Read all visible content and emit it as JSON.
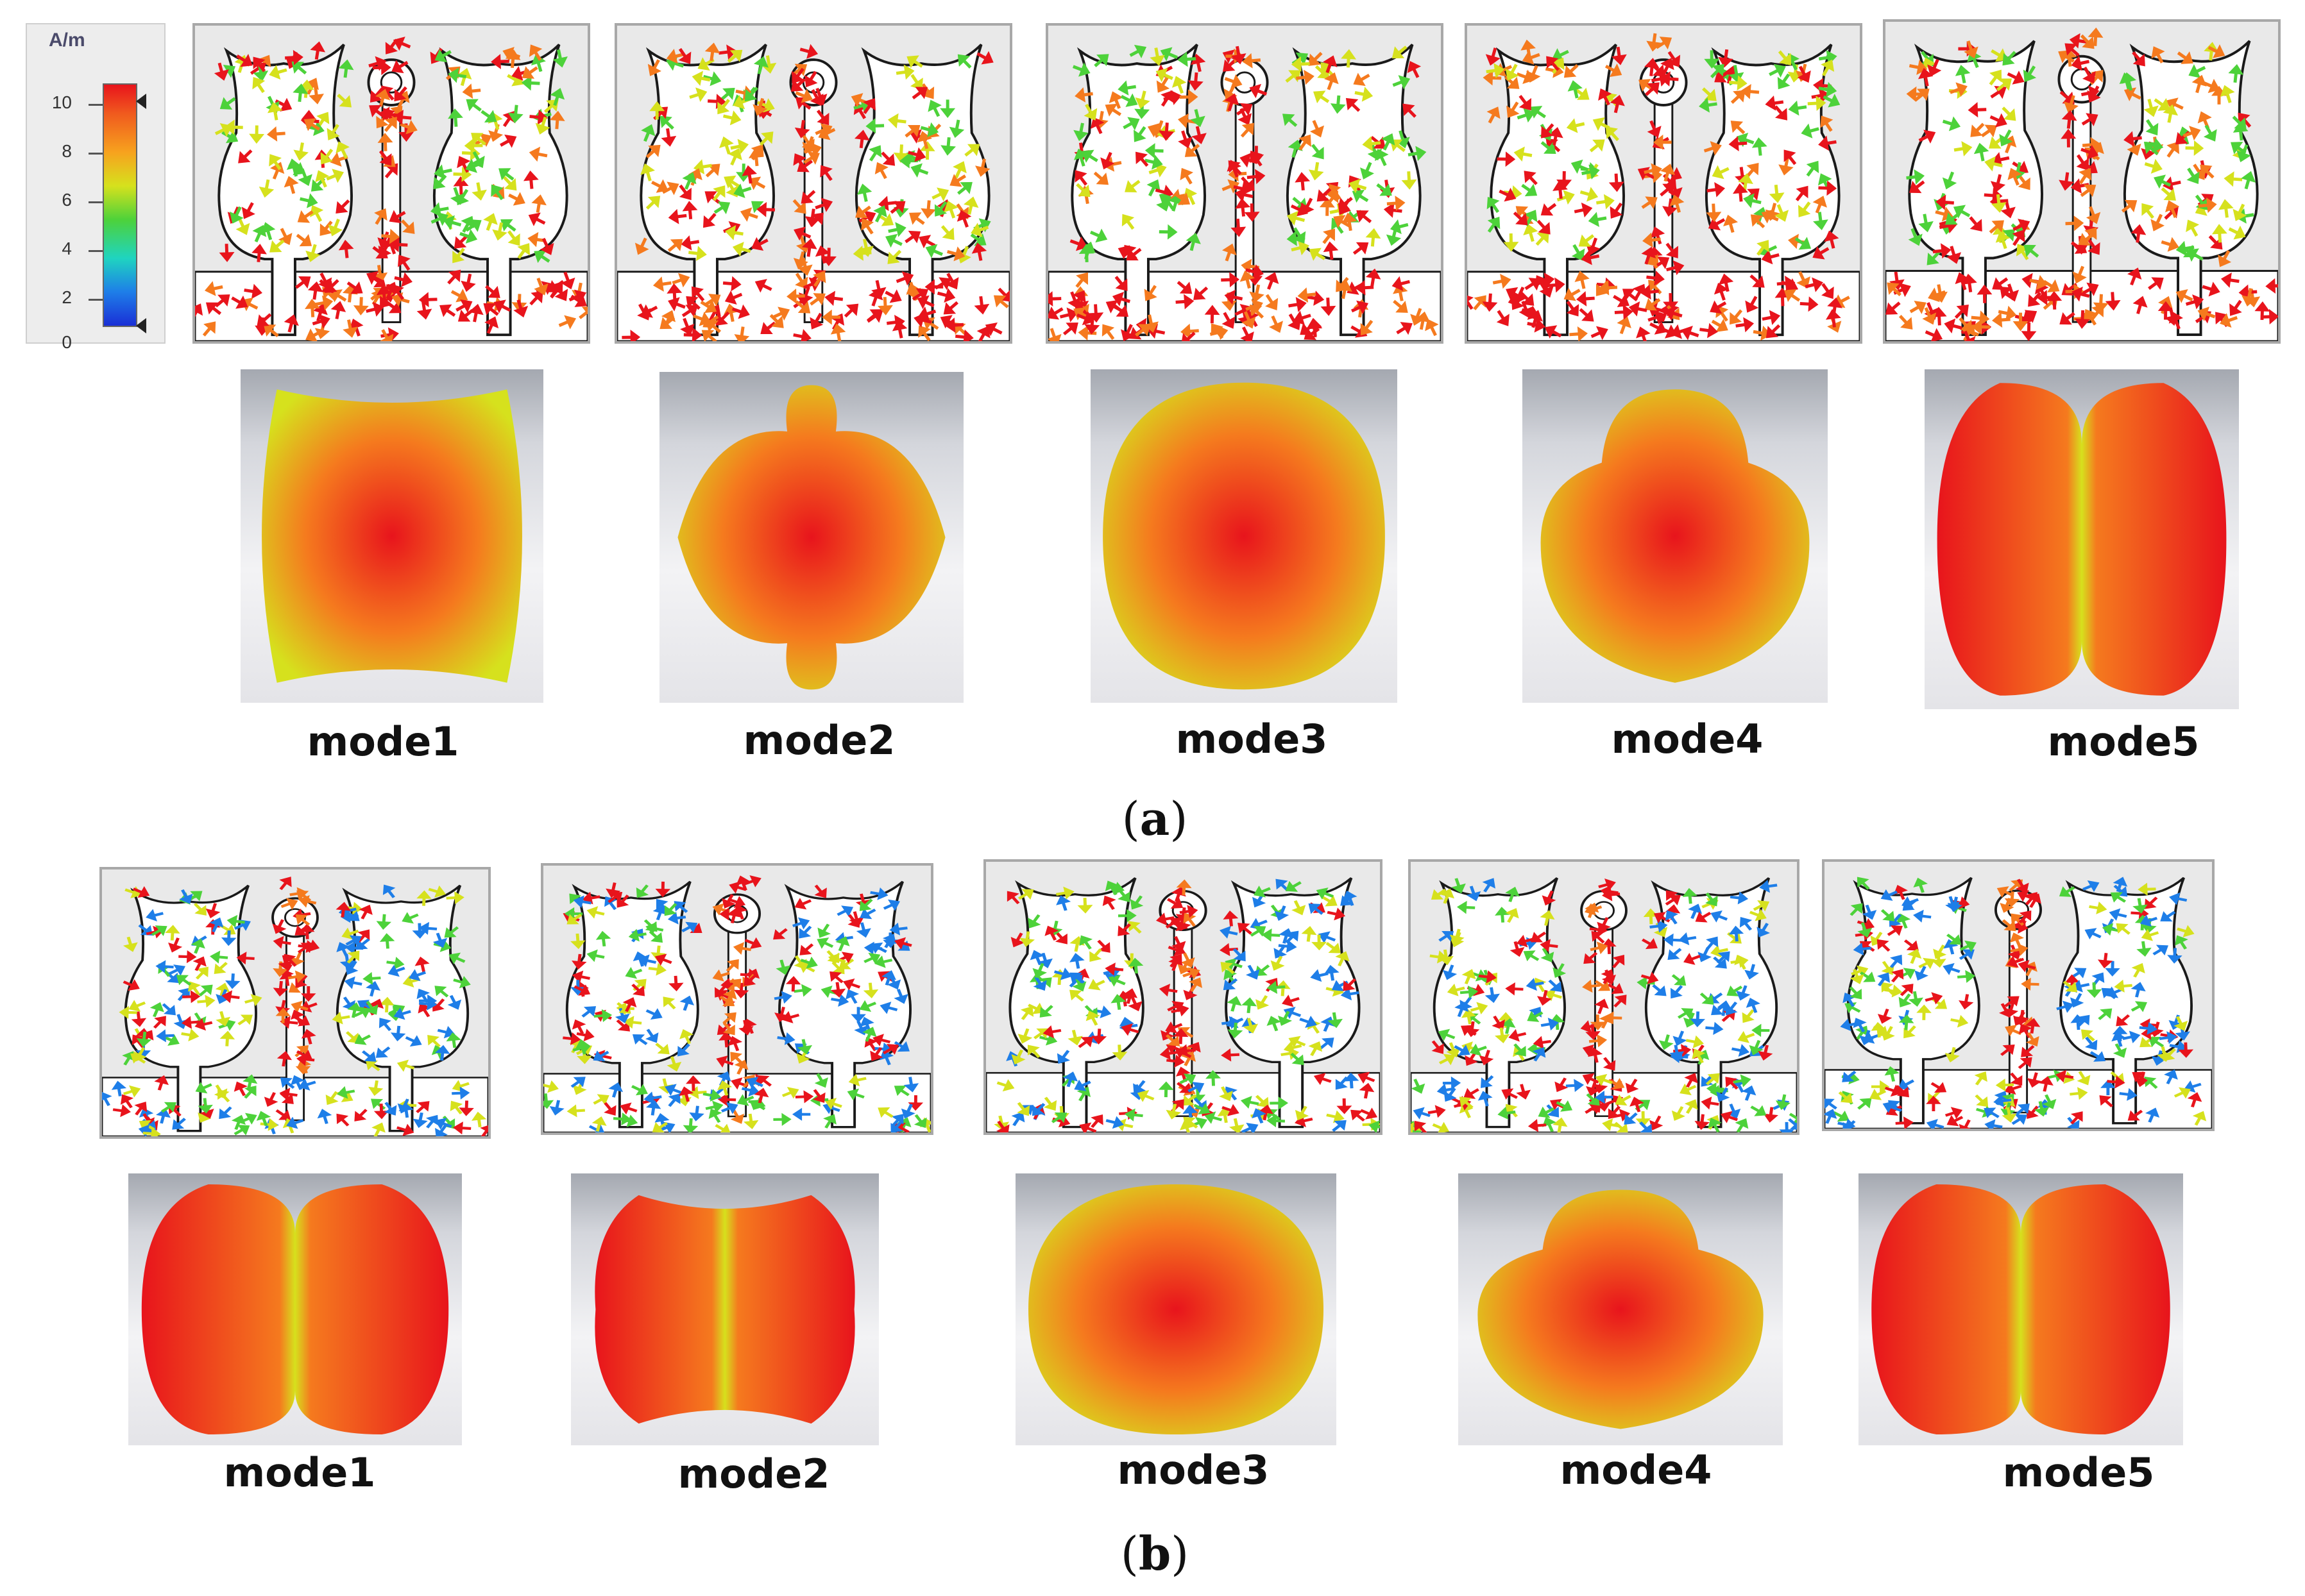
{
  "legend": {
    "unit": "A/m",
    "ticks": [
      "10",
      "8",
      "6",
      "4",
      "2",
      "0"
    ]
  },
  "section_a": {
    "label_paren_open": "(",
    "label": "a",
    "label_paren_close": ")",
    "modes": [
      "mode1",
      "mode2",
      "mode3",
      "mode4",
      "mode5"
    ]
  },
  "section_b": {
    "label_paren_open": "(",
    "label": "b",
    "label_paren_close": ")",
    "modes": [
      "mode1",
      "mode2",
      "mode3",
      "mode4",
      "mode5"
    ]
  },
  "colors": {
    "high": "#e8141c",
    "mid_high": "#f57a1e",
    "mid": "#d6e11d",
    "low_mid": "#4dd23a",
    "low": "#1e7ee8",
    "outline": "#1a1a1a"
  }
}
